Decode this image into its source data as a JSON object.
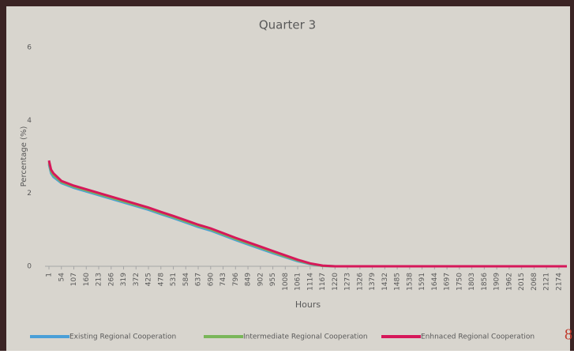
{
  "chart_data": {
    "type": "line",
    "title": "Quarter 3",
    "x_label": "Hours",
    "y_label": "Percentage (%)",
    "x": [
      1,
      10,
      20,
      54,
      107,
      160,
      213,
      266,
      319,
      372,
      425,
      478,
      531,
      584,
      637,
      690,
      743,
      796,
      849,
      902,
      955,
      1008,
      1061,
      1114,
      1167,
      1220,
      1500,
      2000,
      2208
    ],
    "series": [
      {
        "name": "Existing Regional Cooperation",
        "color": "#4a9fd8",
        "values": [
          2.8,
          2.55,
          2.45,
          2.28,
          2.15,
          2.05,
          1.95,
          1.85,
          1.75,
          1.65,
          1.55,
          1.43,
          1.32,
          1.2,
          1.08,
          0.98,
          0.85,
          0.72,
          0.6,
          0.48,
          0.36,
          0.25,
          0.14,
          0.06,
          0.01,
          0,
          0,
          0,
          0
        ]
      },
      {
        "name": "Intermediate Regional Cooperation",
        "color": "#7ab65a",
        "values": [
          2.85,
          2.6,
          2.5,
          2.31,
          2.18,
          2.08,
          1.98,
          1.88,
          1.78,
          1.68,
          1.58,
          1.46,
          1.35,
          1.23,
          1.11,
          1.01,
          0.88,
          0.75,
          0.63,
          0.51,
          0.39,
          0.27,
          0.16,
          0.07,
          0.01,
          0,
          0,
          0,
          0
        ]
      },
      {
        "name": "Enhnaced Regional Cooperation",
        "color": "#d6185a",
        "values": [
          2.9,
          2.65,
          2.55,
          2.34,
          2.21,
          2.11,
          2.01,
          1.91,
          1.81,
          1.71,
          1.61,
          1.49,
          1.38,
          1.26,
          1.14,
          1.04,
          0.91,
          0.78,
          0.66,
          0.54,
          0.42,
          0.3,
          0.18,
          0.08,
          0.02,
          0,
          0,
          0,
          0
        ]
      }
    ],
    "xlim": [
      1,
      2208
    ],
    "xticks": [
      1,
      54,
      107,
      160,
      213,
      266,
      319,
      372,
      425,
      478,
      531,
      584,
      637,
      690,
      743,
      796,
      849,
      902,
      955,
      1008,
      1061,
      1114,
      1167,
      1220,
      1273,
      1326,
      1379,
      1432,
      1485,
      1538,
      1591,
      1644,
      1697,
      1750,
      1803,
      1856,
      1909,
      1962,
      2015,
      2068,
      2121,
      2174
    ],
    "ylim": [
      0,
      6
    ],
    "yticks": [
      0,
      2,
      4,
      6
    ],
    "grid": false,
    "legend": "bottom",
    "page_number": "8"
  }
}
